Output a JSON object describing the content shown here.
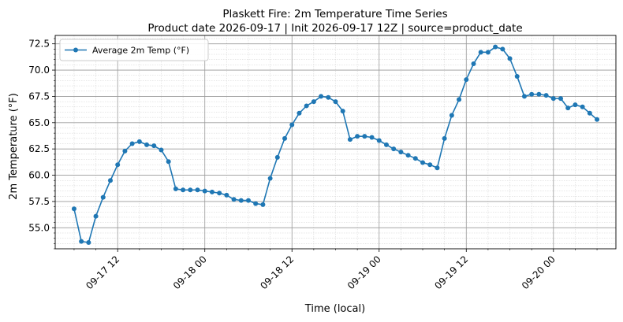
{
  "chart_data": {
    "type": "line",
    "title": "Plaskett Fire: 2m Temperature Time Series",
    "subtitle": "Product date 2026-09-17 | Init 2026-09-17 12Z | source=product_date",
    "xlabel": "Time (local)",
    "ylabel": "2m Temperature (°F)",
    "x_ticks": [
      "2026-09-17 12:00",
      "2026-09-18 00:00",
      "2026-09-18 12:00",
      "2026-09-19 00:00",
      "2026-09-19 12:00",
      "2026-09-20 00:00"
    ],
    "x_tick_labels": [
      "09-17 12",
      "09-18 00",
      "09-18 12",
      "09-19 00",
      "09-19 12",
      "09-20 00"
    ],
    "y_ticks": [
      55.0,
      57.5,
      60.0,
      62.5,
      65.0,
      67.5,
      70.0,
      72.5
    ],
    "y_tick_labels": [
      "55.0",
      "57.5",
      "60.0",
      "62.5",
      "65.0",
      "67.5",
      "70.0",
      "72.5"
    ],
    "xlim": [
      "2026-09-17 03:24",
      "2026-09-20 08:36"
    ],
    "ylim": [
      53.0,
      73.3
    ],
    "grid": true,
    "minor_grid": true,
    "legend_position": "top-left",
    "series": [
      {
        "name": "Average 2m Temp (°F)",
        "color": "#1f77b4",
        "marker": "circle",
        "points": [
          [
            "2026-09-17 06:00",
            56.8
          ],
          [
            "2026-09-17 07:00",
            53.7
          ],
          [
            "2026-09-17 08:00",
            53.6
          ],
          [
            "2026-09-17 09:00",
            56.1
          ],
          [
            "2026-09-17 10:00",
            57.9
          ],
          [
            "2026-09-17 11:00",
            59.5
          ],
          [
            "2026-09-17 12:00",
            61.0
          ],
          [
            "2026-09-17 13:00",
            62.3
          ],
          [
            "2026-09-17 14:00",
            63.0
          ],
          [
            "2026-09-17 15:00",
            63.2
          ],
          [
            "2026-09-17 16:00",
            62.9
          ],
          [
            "2026-09-17 17:00",
            62.8
          ],
          [
            "2026-09-17 18:00",
            62.4
          ],
          [
            "2026-09-17 19:00",
            61.3
          ],
          [
            "2026-09-17 20:00",
            58.7
          ],
          [
            "2026-09-17 21:00",
            58.6
          ],
          [
            "2026-09-17 22:00",
            58.6
          ],
          [
            "2026-09-17 23:00",
            58.6
          ],
          [
            "2026-09-18 00:00",
            58.5
          ],
          [
            "2026-09-18 01:00",
            58.4
          ],
          [
            "2026-09-18 02:00",
            58.3
          ],
          [
            "2026-09-18 03:00",
            58.1
          ],
          [
            "2026-09-18 04:00",
            57.7
          ],
          [
            "2026-09-18 05:00",
            57.6
          ],
          [
            "2026-09-18 06:00",
            57.6
          ],
          [
            "2026-09-18 07:00",
            57.3
          ],
          [
            "2026-09-18 08:00",
            57.2
          ],
          [
            "2026-09-18 09:00",
            59.7
          ],
          [
            "2026-09-18 10:00",
            61.7
          ],
          [
            "2026-09-18 11:00",
            63.5
          ],
          [
            "2026-09-18 12:00",
            64.8
          ],
          [
            "2026-09-18 13:00",
            65.9
          ],
          [
            "2026-09-18 14:00",
            66.6
          ],
          [
            "2026-09-18 15:00",
            67.0
          ],
          [
            "2026-09-18 16:00",
            67.5
          ],
          [
            "2026-09-18 17:00",
            67.4
          ],
          [
            "2026-09-18 18:00",
            67.0
          ],
          [
            "2026-09-18 19:00",
            66.1
          ],
          [
            "2026-09-18 20:00",
            63.4
          ],
          [
            "2026-09-18 21:00",
            63.7
          ],
          [
            "2026-09-18 22:00",
            63.7
          ],
          [
            "2026-09-18 23:00",
            63.6
          ],
          [
            "2026-09-19 00:00",
            63.3
          ],
          [
            "2026-09-19 01:00",
            62.9
          ],
          [
            "2026-09-19 02:00",
            62.5
          ],
          [
            "2026-09-19 03:00",
            62.2
          ],
          [
            "2026-09-19 04:00",
            61.9
          ],
          [
            "2026-09-19 05:00",
            61.6
          ],
          [
            "2026-09-19 06:00",
            61.2
          ],
          [
            "2026-09-19 07:00",
            61.0
          ],
          [
            "2026-09-19 08:00",
            60.7
          ],
          [
            "2026-09-19 09:00",
            63.5
          ],
          [
            "2026-09-19 10:00",
            65.7
          ],
          [
            "2026-09-19 11:00",
            67.2
          ],
          [
            "2026-09-19 12:00",
            69.1
          ],
          [
            "2026-09-19 13:00",
            70.6
          ],
          [
            "2026-09-19 14:00",
            71.7
          ],
          [
            "2026-09-19 15:00",
            71.7
          ],
          [
            "2026-09-19 16:00",
            72.2
          ],
          [
            "2026-09-19 17:00",
            72.0
          ],
          [
            "2026-09-19 18:00",
            71.1
          ],
          [
            "2026-09-19 19:00",
            69.4
          ],
          [
            "2026-09-19 20:00",
            67.5
          ],
          [
            "2026-09-19 21:00",
            67.7
          ],
          [
            "2026-09-19 22:00",
            67.7
          ],
          [
            "2026-09-19 23:00",
            67.6
          ],
          [
            "2026-09-20 00:00",
            67.3
          ],
          [
            "2026-09-20 01:00",
            67.3
          ],
          [
            "2026-09-20 02:00",
            66.4
          ],
          [
            "2026-09-20 03:00",
            66.7
          ],
          [
            "2026-09-20 04:00",
            66.5
          ],
          [
            "2026-09-20 05:00",
            65.9
          ],
          [
            "2026-09-20 06:00",
            65.3
          ]
        ]
      }
    ]
  }
}
